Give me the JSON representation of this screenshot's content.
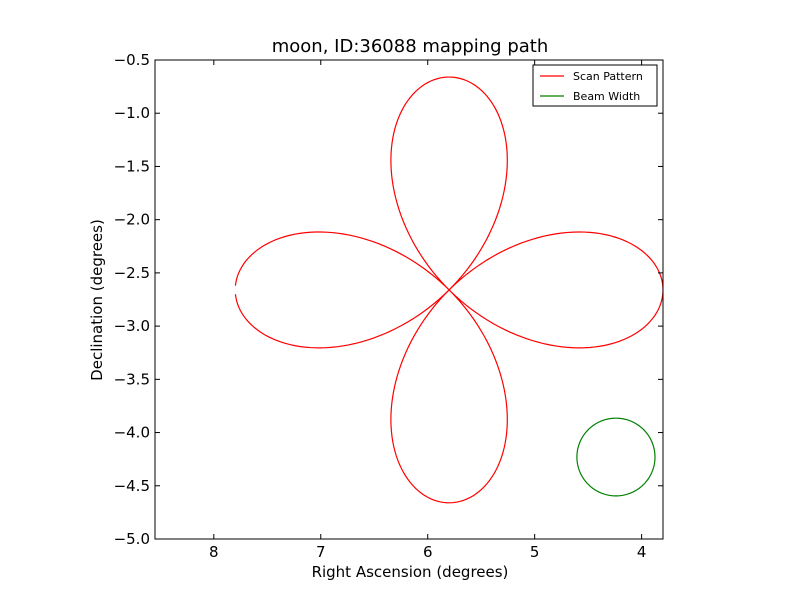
{
  "chart_data": {
    "type": "line",
    "title": "moon, ID:36088 mapping path",
    "xlabel": "Right Ascension (degrees)",
    "ylabel": "Declination (degrees)",
    "xlim": [
      8.55,
      3.8
    ],
    "ylim": [
      -5.0,
      -0.5
    ],
    "x_ticks": [
      8,
      7,
      6,
      5,
      4
    ],
    "x_tick_labels": [
      "8",
      "7",
      "6",
      "5",
      "4"
    ],
    "y_ticks": [
      -0.5,
      -1.0,
      -1.5,
      -2.0,
      -2.5,
      -3.0,
      -3.5,
      -4.0,
      -4.5,
      -5.0
    ],
    "y_tick_labels": [
      "−0.5",
      "−1.0",
      "−1.5",
      "−2.0",
      "−2.5",
      "−3.0",
      "−3.5",
      "−4.0",
      "−4.5",
      "−5.0"
    ],
    "grid": false,
    "legend_position": "top-right",
    "series": [
      {
        "name": "Scan Pattern",
        "color": "#ff0000",
        "shape": "four-leaf rose",
        "center": [
          5.8,
          -2.66
        ],
        "leaf_length": 2.0,
        "x_range": [
          3.8,
          7.8
        ],
        "y_range": [
          -4.66,
          -0.66
        ]
      },
      {
        "name": "Beam Width",
        "color": "#008000",
        "shape": "circle",
        "center": [
          4.24,
          -4.23
        ],
        "radius": 0.365
      }
    ]
  }
}
